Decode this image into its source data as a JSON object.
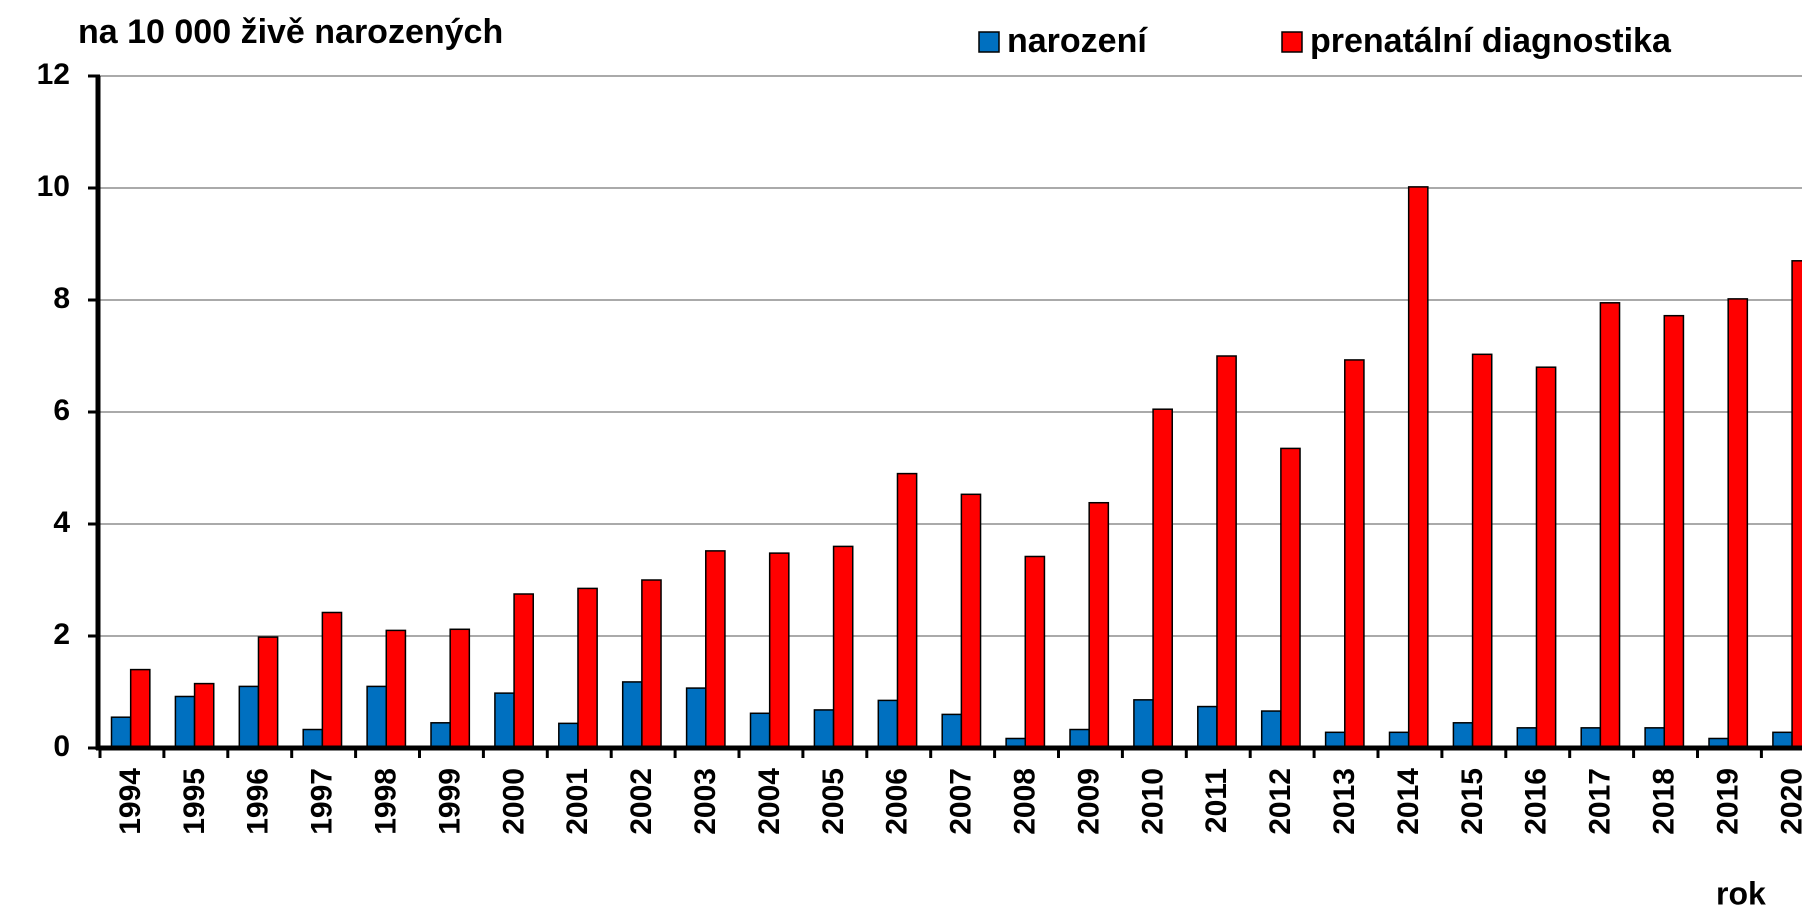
{
  "chart_data": {
    "type": "bar",
    "y_label": "na 10 000 živě narozených",
    "x_label": "rok",
    "categories": [
      "1994",
      "1995",
      "1996",
      "1997",
      "1998",
      "1999",
      "2000",
      "2001",
      "2002",
      "2003",
      "2004",
      "2005",
      "2006",
      "2007",
      "2008",
      "2009",
      "2010",
      "2011",
      "2012",
      "2013",
      "2014",
      "2015",
      "2016",
      "2017",
      "2018",
      "2019",
      "2020"
    ],
    "series": [
      {
        "name": "narození",
        "color": "#0070c0",
        "values": [
          0.55,
          0.92,
          1.1,
          0.33,
          1.1,
          0.45,
          0.98,
          0.44,
          1.18,
          1.07,
          0.62,
          0.68,
          0.85,
          0.6,
          0.17,
          0.33,
          0.86,
          0.74,
          0.66,
          0.28,
          0.28,
          0.45,
          0.36,
          0.36,
          0.36,
          0.17,
          0.28
        ]
      },
      {
        "name": "prenatální diagnostika",
        "color": "#ff0000",
        "values": [
          1.4,
          1.15,
          1.98,
          2.42,
          2.1,
          2.12,
          2.75,
          2.85,
          3.0,
          3.52,
          3.48,
          3.6,
          4.9,
          4.53,
          3.42,
          4.38,
          6.05,
          7.0,
          5.35,
          6.93,
          10.02,
          7.03,
          6.8,
          7.95,
          7.72,
          8.02,
          8.7
        ]
      }
    ],
    "ylim": [
      0,
      12
    ],
    "yticks": [
      0,
      2,
      4,
      6,
      8,
      10,
      12
    ],
    "grid": true
  }
}
